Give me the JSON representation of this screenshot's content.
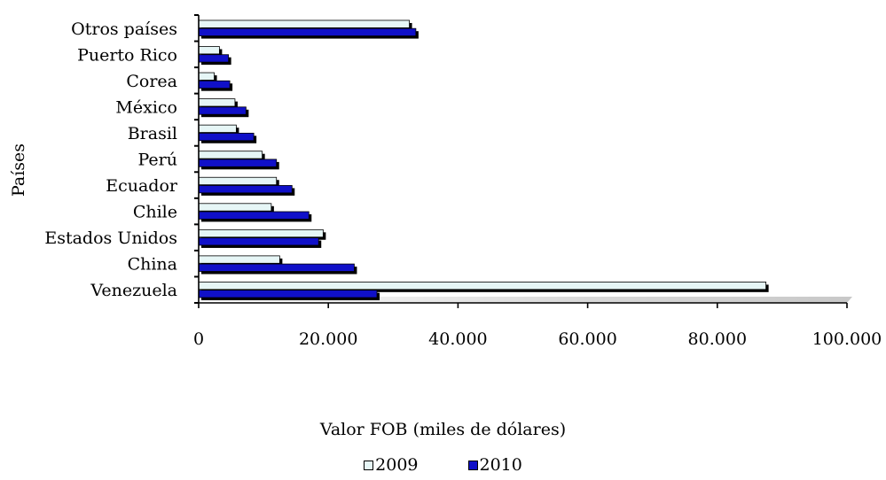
{
  "chart_data": {
    "type": "bar",
    "orientation": "horizontal",
    "categories": [
      "Venezuela",
      "China",
      "Estados Unidos",
      "Chile",
      "Ecuador",
      "Perú",
      "Brasil",
      "México",
      "Corea",
      "Puerto Rico",
      "Otros países"
    ],
    "series": [
      {
        "name": "2009",
        "color": "#e6f6f6",
        "values": [
          87500,
          12500,
          19200,
          11200,
          12000,
          9800,
          5800,
          5600,
          2400,
          3200,
          32500
        ]
      },
      {
        "name": "2010",
        "color": "#1010c8",
        "values": [
          27500,
          24000,
          18500,
          17000,
          14400,
          12000,
          8500,
          7300,
          4800,
          4600,
          33500
        ]
      }
    ],
    "xlabel": "Valor FOB (miles de dólares)",
    "ylabel": "Países",
    "xlim": [
      0,
      100000
    ],
    "xticks": [
      "0",
      "20.000",
      "40.000",
      "60.000",
      "80.000",
      "100.000"
    ],
    "grid": false,
    "legend_position": "bottom"
  }
}
